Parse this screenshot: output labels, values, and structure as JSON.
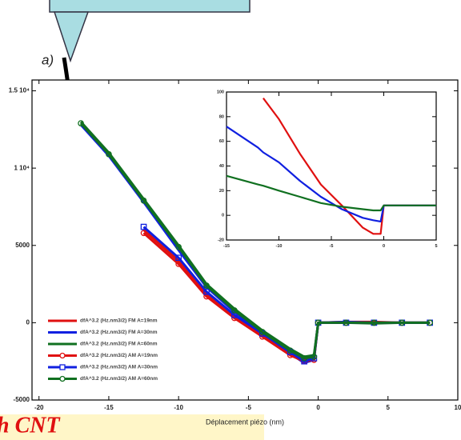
{
  "panel_label": "a)",
  "caption": "h CNT",
  "chart_data": [
    {
      "type": "line",
      "x_label": "Déplacement piézo (nm)",
      "legend": "lower left",
      "grid": false,
      "x": [
        -17,
        -15,
        -12.5,
        -10,
        -8,
        -6,
        -4,
        -2,
        -1,
        -0.3,
        0,
        2,
        4,
        6,
        8
      ],
      "xlim": [
        -20.5,
        10
      ],
      "xticks": [
        -20,
        -15,
        -10,
        -5,
        0,
        5,
        10
      ],
      "ylim": [
        -5000,
        15700
      ],
      "yticks": [
        {
          "value": -5000,
          "label": "-5000"
        },
        0,
        5000,
        {
          "value": 10000,
          "label": "1 10⁴"
        },
        {
          "value": 15000,
          "label": "1.5 10⁴"
        }
      ],
      "series": [
        {
          "name": "dfA^3.2 (Hz.nm3/2) FM A=19nm",
          "color": "#e01010",
          "values": [
            null,
            null,
            6000,
            4000,
            1800,
            400,
            -800,
            -2000,
            -2400,
            -2300,
            0,
            50,
            50,
            0,
            0
          ]
        },
        {
          "name": "dfA^3.2 (Hz.nm3/2) FM A=30nm",
          "color": "#1020e0",
          "values": [
            12800,
            10800,
            7800,
            4700,
            2300,
            700,
            -600,
            -2000,
            -2600,
            -2400,
            0,
            50,
            0,
            0,
            0
          ]
        },
        {
          "name": "dfA^3.2 (Hz.nm3/2) FM A=60nm",
          "color": "#107020",
          "values": [
            13000,
            11000,
            8000,
            5000,
            2500,
            900,
            -500,
            -1700,
            -2200,
            -2100,
            0,
            0,
            -50,
            0,
            0
          ]
        },
        {
          "name": "dfA^3.2 (Hz.nm3/2) AM A=19nm",
          "color": "#e01010",
          "marker": "circle",
          "values": [
            null,
            null,
            5800,
            3800,
            1700,
            300,
            -900,
            -2100,
            -2500,
            -2400,
            0,
            0,
            0,
            0,
            0
          ]
        },
        {
          "name": "dfA^3.2 (Hz.nm3/2) AM A=30nm",
          "color": "#1020e0",
          "marker": "square",
          "values": [
            null,
            null,
            6200,
            4200,
            2000,
            500,
            -700,
            -1900,
            -2500,
            -2300,
            0,
            0,
            0,
            0,
            0
          ]
        },
        {
          "name": "dfA^3.2 (Hz.nm3/2) AM A=60nm",
          "color": "#107020",
          "marker": "circle",
          "values": [
            12900,
            10900,
            7900,
            4900,
            2400,
            800,
            -600,
            -1800,
            -2300,
            -2200,
            0,
            0,
            0,
            0,
            0
          ]
        }
      ]
    },
    {
      "type": "line",
      "grid": false,
      "x": [
        -15,
        -12,
        -11.5,
        -10,
        -8,
        -6,
        -4,
        -2,
        -1,
        -0.3,
        0,
        5
      ],
      "xlim": [
        -15,
        5
      ],
      "xticks": [
        -15,
        -10,
        -5,
        0,
        5
      ],
      "ylim": [
        -20,
        100
      ],
      "yticks": [
        -20,
        0,
        20,
        40,
        60,
        80,
        100
      ],
      "series": [
        {
          "color": "#e01010",
          "values": [
            null,
            null,
            95,
            78,
            50,
            25,
            8,
            -10,
            -15,
            -15,
            8,
            8
          ]
        },
        {
          "color": "#1020e0",
          "values": [
            72,
            55,
            51,
            43,
            28,
            15,
            5,
            -2,
            -4,
            -5,
            8,
            8
          ]
        },
        {
          "color": "#107020",
          "values": [
            32,
            25,
            24,
            20,
            15,
            10,
            7,
            5,
            4,
            4,
            8,
            8
          ]
        }
      ]
    }
  ]
}
